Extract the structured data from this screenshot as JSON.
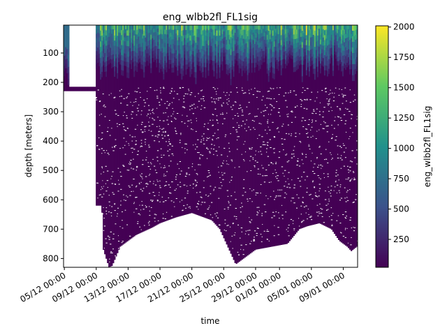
{
  "chart_data": {
    "type": "heatmap",
    "title": "eng_wlbb2fl_FL1sig",
    "xlabel": "time",
    "ylabel": "depth [meters]",
    "colorbar_label": "eng_wlbb2fl_FL1sig",
    "colormap": "viridis",
    "colormap_stops": [
      "#440154",
      "#3b528b",
      "#21918c",
      "#5ec962",
      "#fde725"
    ],
    "color_range": [
      20,
      2010
    ],
    "x_tick_labels": [
      "05/12 00:00",
      "09/12 00:00",
      "13/12 00:00",
      "17/12 00:00",
      "21/12 00:00",
      "25/12 00:00",
      "29/12 00:00",
      "01/01 00:00",
      "05/01 00:00",
      "09/01 00:00"
    ],
    "x_tick_days": [
      0,
      4,
      8,
      12,
      16,
      20,
      24,
      27,
      31,
      35
    ],
    "xlim_days": [
      -0.1,
      36.8
    ],
    "y_ticks": [
      100,
      200,
      300,
      400,
      500,
      600,
      700,
      800
    ],
    "ylim": [
      830,
      5
    ],
    "colorbar_ticks": [
      250,
      500,
      750,
      1000,
      1250,
      1500,
      1750,
      2000
    ],
    "gap": {
      "start_day": 0.6,
      "end_day": 3.9,
      "top_depth": 215,
      "note": "no data"
    },
    "max_depth_profile": {
      "days": [
        0,
        3.9,
        4.0,
        4.7,
        4.9,
        5.6,
        6.0,
        7.0,
        9,
        11,
        12,
        14,
        16,
        17,
        18.5,
        19.5,
        20.5,
        21.5,
        22.5,
        24,
        26,
        28,
        29.5,
        30.5,
        32,
        33.5,
        34.5,
        35.5,
        36.0,
        36.7
      ],
      "depths": [
        230,
        230,
        620,
        620,
        770,
        830,
        825,
        760,
        720,
        695,
        680,
        660,
        645,
        655,
        670,
        700,
        760,
        820,
        800,
        770,
        760,
        750,
        700,
        690,
        680,
        700,
        740,
        760,
        775,
        760
      ]
    },
    "surface_band": {
      "depth_range": [
        5,
        210
      ],
      "typical_values": [
        200,
        2010
      ],
      "brightest_near_surface": true
    },
    "deep_values": "~100 (dark purple) with scattered missing samples"
  }
}
